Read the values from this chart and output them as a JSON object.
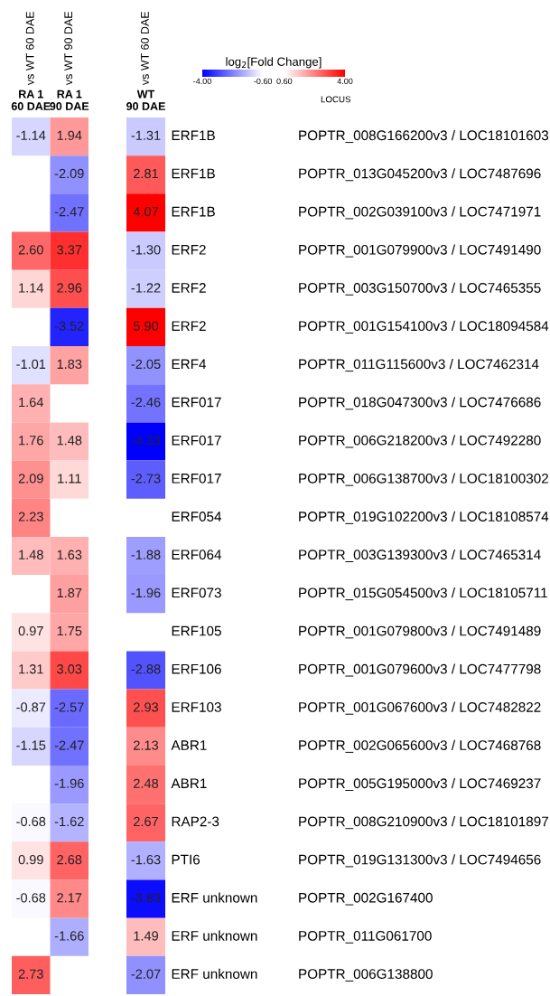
{
  "chart_data": [
    {
      "type": "heatmap",
      "categories": [
        "RA 1\n60 DAE",
        "RA 1\n90 DAE"
      ],
      "annotations": [
        "vs WT 60 DAE",
        "vs WT 90 DAE"
      ],
      "y_categories": [
        null,
        null,
        null,
        null,
        null,
        null,
        null,
        null,
        null,
        null,
        null,
        null,
        null,
        null,
        null,
        null,
        null,
        null,
        null,
        null,
        null,
        null,
        null
      ],
      "cells": [
        [
          -1.14,
          1.94
        ],
        [
          null,
          -2.09
        ],
        [
          null,
          -2.47
        ],
        [
          2.6,
          3.37
        ],
        [
          1.14,
          2.96
        ],
        [
          null,
          -3.52
        ],
        [
          -1.01,
          1.83
        ],
        [
          1.64,
          null
        ],
        [
          1.76,
          1.48
        ],
        [
          2.09,
          1.11
        ],
        [
          2.23,
          null
        ],
        [
          1.48,
          1.63
        ],
        [
          null,
          1.87
        ],
        [
          0.97,
          1.75
        ],
        [
          1.31,
          3.03
        ],
        [
          -0.87,
          -2.57
        ],
        [
          -1.15,
          -2.47
        ],
        [
          null,
          -1.96
        ],
        [
          -0.68,
          -1.62
        ],
        [
          0.99,
          2.68
        ],
        [
          -0.68,
          2.17
        ],
        [
          null,
          -1.66
        ],
        [
          2.73,
          null
        ]
      ],
      "cell_labels": [
        [
          "-1.14",
          "1.94"
        ],
        [
          null,
          "-2.09"
        ],
        [
          null,
          "-2.47"
        ],
        [
          "2.60",
          "3.37"
        ],
        [
          "1.14",
          "2.96"
        ],
        [
          null,
          "-3.52"
        ],
        [
          "-1.01",
          "1.83"
        ],
        [
          "1.64",
          null
        ],
        [
          "1.76",
          "1.48"
        ],
        [
          "2.09",
          "1.11"
        ],
        [
          "2.23",
          null
        ],
        [
          "1.48",
          "1.63"
        ],
        [
          null,
          "1.87"
        ],
        [
          "0.97",
          "1.75"
        ],
        [
          "1.31",
          "3.03"
        ],
        [
          "-0.87",
          "-2.57"
        ],
        [
          "-1.15",
          "-2.47"
        ],
        [
          null,
          "-1.96"
        ],
        [
          "-0.68",
          "-1.62"
        ],
        [
          "0.99",
          "2.68"
        ],
        [
          "-0.68",
          "2.17"
        ],
        [
          null,
          "-1.66"
        ],
        [
          "2.73",
          null
        ]
      ],
      "tick_labels": "x"
    },
    {
      "type": "heatmap",
      "categories": [
        "WT\n90 DAE"
      ],
      "annotations": [
        "vs WT 60 DAE"
      ],
      "y_categories": [
        "ERF1B",
        "ERF1B",
        "ERF1B",
        "ERF2",
        "ERF2",
        "ERF2",
        "ERF4",
        "ERF017",
        "ERF017",
        "ERF017",
        "ERF054",
        "ERF064",
        "ERF073",
        "ERF105",
        "ERF106",
        "ERF103",
        "ABR1",
        "ABR1",
        "RAP2-3",
        "PTI6",
        "ERF unknown",
        "ERF unknown",
        "ERF unknown"
      ],
      "y2label": "LOCUS",
      "y2_categories": [
        "POPTR_008G166200v3 / LOC18101603",
        "POPTR_013G045200v3 / LOC7487696",
        "POPTR_002G039100v3 / LOC7471971",
        "POPTR_001G079900v3 / LOC7491490",
        "POPTR_003G150700v3 / LOC7465355",
        "POPTR_001G154100v3 / LOC18094584",
        "POPTR_011G115600v3 / LOC7462314",
        "POPTR_018G047300v3 / LOC7476686",
        "POPTR_006G218200v3 / LOC7492280",
        "POPTR_006G138700v3 / LOC18100302",
        "POPTR_019G102200v3 / LOC18108574",
        "POPTR_003G139300v3 / LOC7465314",
        "POPTR_015G054500v3 / LOC18105711",
        "POPTR_001G079800v3 / LOC7491489",
        "POPTR_001G079600v3 / LOC7477798",
        "POPTR_001G067600v3 / LOC7482822",
        "POPTR_002G065600v3 / LOC7468768",
        "POPTR_005G195000v3 / LOC7469237",
        "POPTR_008G210900v3 / LOC18101897",
        "POPTR_019G131300v3 / LOC7494656",
        "POPTR_002G167400",
        "POPTR_011G061700",
        "POPTR_006G138800"
      ],
      "cells": [
        [
          -1.31
        ],
        [
          2.81
        ],
        [
          4.07
        ],
        [
          -1.3
        ],
        [
          -1.22
        ],
        [
          5.9
        ],
        [
          -2.05
        ],
        [
          -2.46
        ],
        [
          -4.33
        ],
        [
          -2.73
        ],
        [
          null
        ],
        [
          -1.88
        ],
        [
          -1.96
        ],
        [
          null
        ],
        [
          -2.88
        ],
        [
          2.93
        ],
        [
          2.13
        ],
        [
          2.48
        ],
        [
          2.67
        ],
        [
          -1.63
        ],
        [
          -3.83
        ],
        [
          1.49
        ],
        [
          -2.07
        ]
      ],
      "clabel": "log$_{2}$[Fold Change]",
      "clim": [
        -4,
        4
      ],
      "cticks": [
        {
          "value": -4,
          "label": "-4.00"
        },
        {
          "value": -0.6,
          "label": "-0.60"
        },
        {
          "value": 0.6,
          "label": "0.60"
        },
        {
          "value": 4,
          "label": "4.00"
        }
      ],
      "cell_labels": [
        [
          "-1.31"
        ],
        [
          "2.81"
        ],
        [
          "4.07"
        ],
        [
          "-1.30"
        ],
        [
          "-1.22"
        ],
        [
          "5.90"
        ],
        [
          "-2.05"
        ],
        [
          "-2.46"
        ],
        [
          "-4.33"
        ],
        [
          "-2.73"
        ],
        [
          null
        ],
        [
          "-1.88"
        ],
        [
          "-1.96"
        ],
        [
          null
        ],
        [
          "-2.88"
        ],
        [
          "2.93"
        ],
        [
          "2.13"
        ],
        [
          "2.48"
        ],
        [
          "2.67"
        ],
        [
          "-1.63"
        ],
        [
          "-3.83"
        ],
        [
          "1.49"
        ],
        [
          "-2.07"
        ]
      ]
    }
  ]
}
